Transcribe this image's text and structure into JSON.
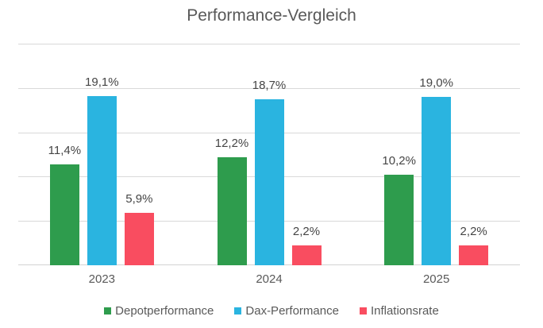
{
  "chart_data": {
    "type": "bar",
    "title": "Performance-Vergleich",
    "categories": [
      "2023",
      "2024",
      "2025"
    ],
    "series": [
      {
        "name": "Depotperformance",
        "color": "#2E9C4D",
        "values": [
          11.4,
          12.2,
          10.2
        ],
        "labels": [
          "11,4%",
          "12,2%",
          "10,2%"
        ]
      },
      {
        "name": "Dax-Performance",
        "color": "#2AB4E0",
        "values": [
          19.1,
          18.7,
          19.0
        ],
        "labels": [
          "19,1%",
          "18,7%",
          "19,0%"
        ]
      },
      {
        "name": "Inflationsrate",
        "color": "#F94D60",
        "values": [
          5.9,
          2.2,
          2.2
        ],
        "labels": [
          "5,9%",
          "2,2%",
          "2,2%"
        ]
      }
    ],
    "xlabel": "",
    "ylabel": "",
    "ylim": [
      0,
      25
    ],
    "grid_step": 5,
    "grid": true,
    "y_tick_labels_shown": false,
    "legend_position": "bottom",
    "value_label_format": "german-decimal-comma-percent"
  },
  "colors": {
    "background": "#FFFFFF",
    "gridline": "#D9D9D9",
    "axis_line": "#D3D3D3",
    "title_text": "#595959",
    "value_label_text": "#454545",
    "category_text": "#595959",
    "legend_text": "#595959"
  }
}
